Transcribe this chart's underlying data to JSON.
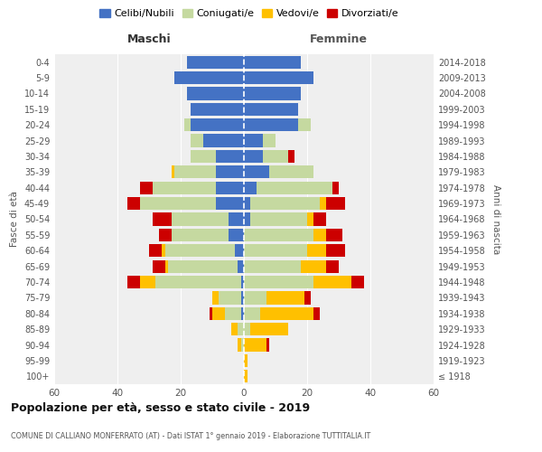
{
  "age_groups": [
    "100+",
    "95-99",
    "90-94",
    "85-89",
    "80-84",
    "75-79",
    "70-74",
    "65-69",
    "60-64",
    "55-59",
    "50-54",
    "45-49",
    "40-44",
    "35-39",
    "30-34",
    "25-29",
    "20-24",
    "15-19",
    "10-14",
    "5-9",
    "0-4"
  ],
  "birth_years": [
    "≤ 1918",
    "1919-1923",
    "1924-1928",
    "1929-1933",
    "1934-1938",
    "1939-1943",
    "1944-1948",
    "1949-1953",
    "1954-1958",
    "1959-1963",
    "1964-1968",
    "1969-1973",
    "1974-1978",
    "1979-1983",
    "1984-1988",
    "1989-1993",
    "1994-1998",
    "1999-2003",
    "2004-2008",
    "2009-2013",
    "2014-2018"
  ],
  "maschi": {
    "celibi": [
      0,
      0,
      0,
      0,
      1,
      1,
      1,
      2,
      3,
      5,
      5,
      9,
      9,
      9,
      9,
      13,
      17,
      17,
      18,
      22,
      18
    ],
    "coniugati": [
      0,
      0,
      1,
      2,
      5,
      7,
      27,
      22,
      22,
      18,
      18,
      24,
      20,
      13,
      8,
      4,
      2,
      0,
      0,
      0,
      0
    ],
    "vedovi": [
      0,
      0,
      1,
      2,
      4,
      2,
      5,
      1,
      1,
      0,
      0,
      0,
      0,
      1,
      0,
      0,
      0,
      0,
      0,
      0,
      0
    ],
    "divorziati": [
      0,
      0,
      0,
      0,
      1,
      0,
      4,
      4,
      4,
      4,
      6,
      4,
      4,
      0,
      0,
      0,
      0,
      0,
      0,
      0,
      0
    ]
  },
  "femmine": {
    "nubili": [
      0,
      0,
      0,
      0,
      0,
      0,
      0,
      0,
      0,
      0,
      2,
      2,
      4,
      8,
      6,
      6,
      17,
      17,
      18,
      22,
      18
    ],
    "coniugate": [
      0,
      0,
      0,
      2,
      5,
      7,
      22,
      18,
      20,
      22,
      18,
      22,
      24,
      14,
      8,
      4,
      4,
      0,
      0,
      0,
      0
    ],
    "vedove": [
      1,
      1,
      7,
      12,
      17,
      12,
      12,
      8,
      6,
      4,
      2,
      2,
      0,
      0,
      0,
      0,
      0,
      0,
      0,
      0,
      0
    ],
    "divorziate": [
      0,
      0,
      1,
      0,
      2,
      2,
      4,
      4,
      6,
      5,
      4,
      6,
      2,
      0,
      2,
      0,
      0,
      0,
      0,
      0,
      0
    ]
  },
  "colors": {
    "celibi": "#4472c4",
    "coniugati": "#c5d9a0",
    "vedovi": "#ffc000",
    "divorziati": "#cc0000"
  },
  "xlim": 60,
  "title": "Popolazione per età, sesso e stato civile - 2019",
  "subtitle": "COMUNE DI CALLIANO MONFERRATO (AT) - Dati ISTAT 1° gennaio 2019 - Elaborazione TUTTITALIA.IT",
  "legend_labels": [
    "Celibi/Nubili",
    "Coniugati/e",
    "Vedovi/e",
    "Divorziati/e"
  ],
  "maschi_label": "Maschi",
  "femmine_label": "Femmine",
  "left_axis_label": "Fasce di età",
  "right_axis_label": "Anni di nascita",
  "bg_color": "#efefef",
  "maschi_color": "#333333",
  "femmine_color": "#555555"
}
